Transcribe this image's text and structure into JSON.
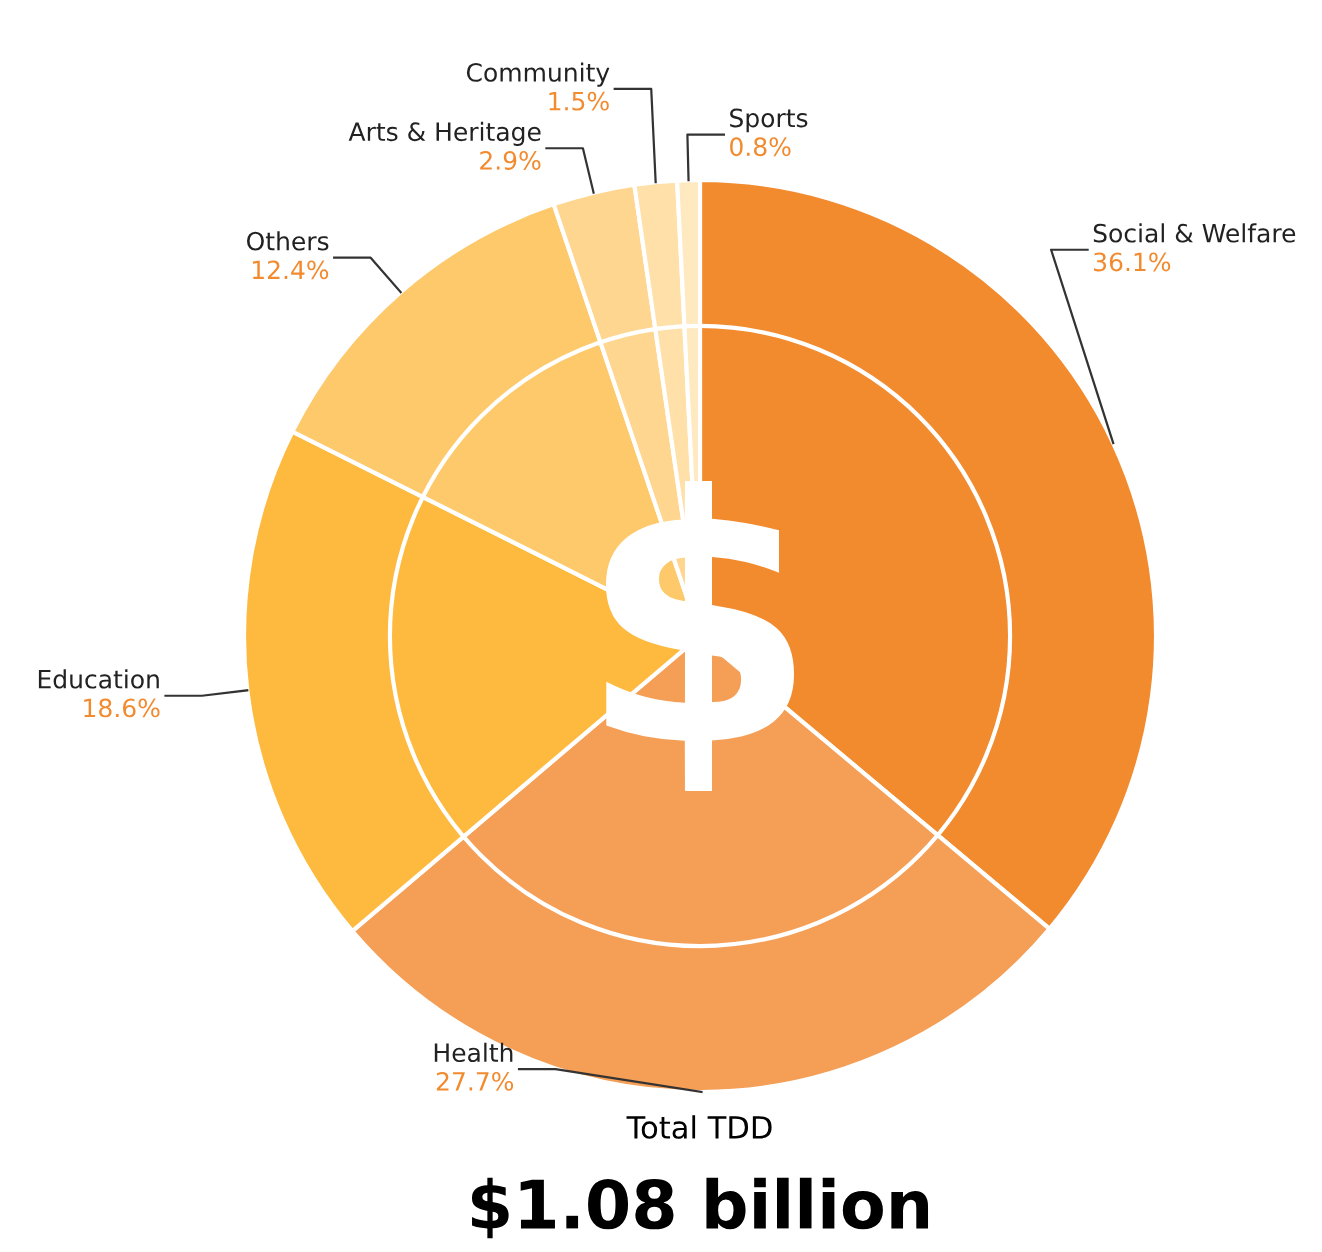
{
  "chart_data": {
    "type": "pie",
    "categories": [
      "Social & Welfare",
      "Health",
      "Education",
      "Others",
      "Arts & Heritage",
      "Community",
      "Sports"
    ],
    "values": [
      36.1,
      27.7,
      18.6,
      12.4,
      2.9,
      1.5,
      0.8
    ],
    "colors": [
      "#f28a2e",
      "#f59e55",
      "#fdba3f",
      "#fdc96a",
      "#fed68f",
      "#fee0a8",
      "#ffe9c0"
    ],
    "value_labels": [
      "36.1%",
      "27.7%",
      "18.6%",
      "12.4%",
      "2.9%",
      "1.5%",
      "0.8%"
    ],
    "annotations": [
      "Total TDD",
      "$1.08 billion"
    ]
  }
}
